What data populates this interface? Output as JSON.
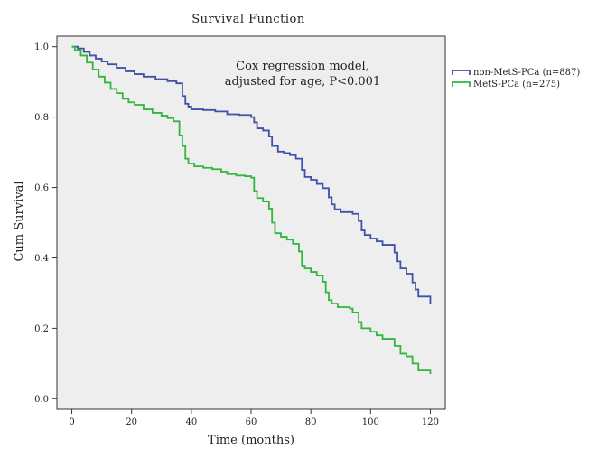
{
  "chart_data": {
    "type": "line",
    "step": true,
    "title": "Survival Function",
    "xlabel": "Time (months)",
    "ylabel": "Cum Survival",
    "xlim": [
      -5,
      125
    ],
    "ylim": [
      -0.03,
      1.03
    ],
    "xticks": [
      0,
      20,
      40,
      60,
      80,
      100,
      120
    ],
    "yticks": [
      0.0,
      0.2,
      0.4,
      0.6,
      0.8,
      1.0
    ],
    "xtick_labels": [
      "0",
      "20",
      "40",
      "60",
      "80",
      "100",
      "120"
    ],
    "ytick_labels": [
      "0.0",
      "0.2",
      "0.4",
      "0.6",
      "0.8",
      "1.0"
    ],
    "annotation": [
      "Cox regression model,",
      "adjusted for age, P<0.001"
    ],
    "plot_background": "#eeeeee",
    "legend_position": "right",
    "series": [
      {
        "name": "non-MetS-PCa (n=887)",
        "color": "#3f51a8",
        "points": [
          [
            0,
            1.0
          ],
          [
            2,
            0.995
          ],
          [
            4,
            0.985
          ],
          [
            6,
            0.975
          ],
          [
            8,
            0.966
          ],
          [
            10,
            0.958
          ],
          [
            12,
            0.95
          ],
          [
            15,
            0.94
          ],
          [
            18,
            0.93
          ],
          [
            21,
            0.922
          ],
          [
            24,
            0.915
          ],
          [
            28,
            0.908
          ],
          [
            32,
            0.902
          ],
          [
            35,
            0.896
          ],
          [
            37,
            0.86
          ],
          [
            38,
            0.838
          ],
          [
            39,
            0.83
          ],
          [
            40,
            0.822
          ],
          [
            44,
            0.82
          ],
          [
            48,
            0.816
          ],
          [
            52,
            0.808
          ],
          [
            56,
            0.806
          ],
          [
            60,
            0.8
          ],
          [
            61,
            0.785
          ],
          [
            62,
            0.768
          ],
          [
            64,
            0.762
          ],
          [
            66,
            0.745
          ],
          [
            67,
            0.718
          ],
          [
            69,
            0.702
          ],
          [
            71,
            0.698
          ],
          [
            73,
            0.692
          ],
          [
            75,
            0.682
          ],
          [
            77,
            0.65
          ],
          [
            78,
            0.63
          ],
          [
            80,
            0.622
          ],
          [
            82,
            0.61
          ],
          [
            84,
            0.598
          ],
          [
            86,
            0.572
          ],
          [
            87,
            0.552
          ],
          [
            88,
            0.538
          ],
          [
            90,
            0.53
          ],
          [
            94,
            0.525
          ],
          [
            96,
            0.505
          ],
          [
            97,
            0.478
          ],
          [
            98,
            0.465
          ],
          [
            100,
            0.455
          ],
          [
            102,
            0.447
          ],
          [
            104,
            0.437
          ],
          [
            108,
            0.415
          ],
          [
            109,
            0.39
          ],
          [
            110,
            0.37
          ],
          [
            112,
            0.355
          ],
          [
            114,
            0.33
          ],
          [
            115,
            0.31
          ],
          [
            116,
            0.29
          ],
          [
            120,
            0.27
          ]
        ]
      },
      {
        "name": "MetS-PCa (n=275)",
        "color": "#33b53e",
        "points": [
          [
            0,
            1.0
          ],
          [
            1,
            0.99
          ],
          [
            3,
            0.975
          ],
          [
            5,
            0.955
          ],
          [
            7,
            0.935
          ],
          [
            9,
            0.915
          ],
          [
            11,
            0.898
          ],
          [
            13,
            0.88
          ],
          [
            15,
            0.868
          ],
          [
            17,
            0.852
          ],
          [
            19,
            0.842
          ],
          [
            21,
            0.835
          ],
          [
            24,
            0.822
          ],
          [
            27,
            0.812
          ],
          [
            30,
            0.804
          ],
          [
            32,
            0.797
          ],
          [
            34,
            0.788
          ],
          [
            36,
            0.748
          ],
          [
            37,
            0.718
          ],
          [
            38,
            0.682
          ],
          [
            39,
            0.668
          ],
          [
            41,
            0.66
          ],
          [
            44,
            0.656
          ],
          [
            47,
            0.652
          ],
          [
            50,
            0.645
          ],
          [
            52,
            0.638
          ],
          [
            55,
            0.634
          ],
          [
            58,
            0.632
          ],
          [
            60,
            0.628
          ],
          [
            61,
            0.59
          ],
          [
            62,
            0.57
          ],
          [
            64,
            0.56
          ],
          [
            66,
            0.54
          ],
          [
            67,
            0.5
          ],
          [
            68,
            0.47
          ],
          [
            70,
            0.46
          ],
          [
            72,
            0.452
          ],
          [
            74,
            0.44
          ],
          [
            76,
            0.418
          ],
          [
            77,
            0.378
          ],
          [
            78,
            0.37
          ],
          [
            80,
            0.36
          ],
          [
            82,
            0.35
          ],
          [
            84,
            0.332
          ],
          [
            85,
            0.302
          ],
          [
            86,
            0.28
          ],
          [
            87,
            0.27
          ],
          [
            89,
            0.26
          ],
          [
            93,
            0.256
          ],
          [
            94,
            0.245
          ],
          [
            96,
            0.218
          ],
          [
            97,
            0.2
          ],
          [
            100,
            0.19
          ],
          [
            102,
            0.18
          ],
          [
            104,
            0.17
          ],
          [
            108,
            0.15
          ],
          [
            110,
            0.128
          ],
          [
            112,
            0.12
          ],
          [
            114,
            0.1
          ],
          [
            116,
            0.08
          ],
          [
            120,
            0.07
          ]
        ]
      }
    ]
  }
}
